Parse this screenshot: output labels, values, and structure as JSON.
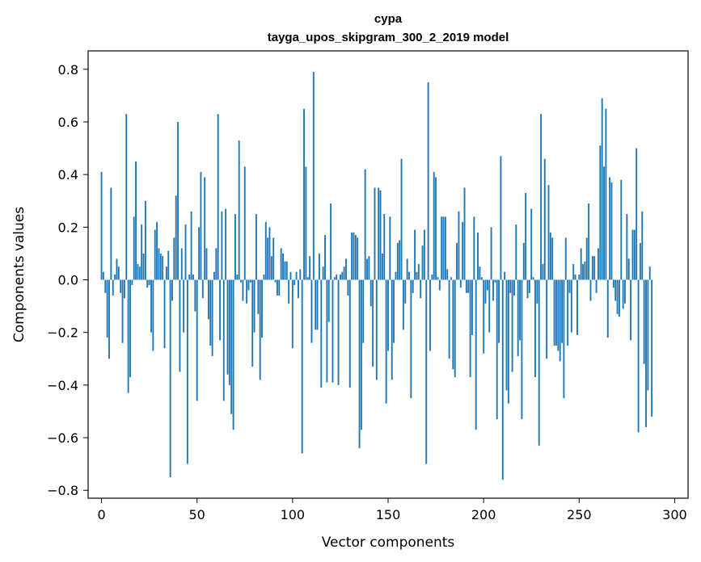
{
  "chart_data": {
    "type": "bar",
    "title": "cypa",
    "subtitle": "tayga_upos_skipgram_300_2_2019 model",
    "xlabel": "Vector components",
    "ylabel": "Components values",
    "xlim": [
      -7,
      307
    ],
    "ylim": [
      -0.83,
      0.87
    ],
    "xticks": [
      0,
      50,
      100,
      150,
      200,
      250,
      300
    ],
    "xtick_labels": [
      "0",
      "50",
      "100",
      "150",
      "200",
      "250",
      "300"
    ],
    "yticks": [
      -0.8,
      -0.6,
      -0.4,
      -0.2,
      0.0,
      0.2,
      0.4,
      0.6,
      0.8
    ],
    "ytick_labels": [
      "−0.8",
      "−0.6",
      "−0.4",
      "−0.2",
      "0.0",
      "0.2",
      "0.4",
      "0.6",
      "0.8"
    ],
    "bar_color": "#1f77b4",
    "x": "0..299",
    "values": [
      0.41,
      0.03,
      -0.05,
      -0.22,
      -0.3,
      0.35,
      -0.06,
      0.02,
      0.08,
      0.05,
      -0.05,
      -0.24,
      -0.07,
      0.63,
      -0.43,
      -0.37,
      -0.02,
      0.24,
      0.45,
      0.06,
      0.05,
      0.21,
      0.1,
      0.3,
      -0.03,
      -0.02,
      -0.2,
      -0.27,
      0.19,
      0.22,
      0.12,
      0.1,
      0.09,
      -0.26,
      0.05,
      0.11,
      -0.75,
      -0.08,
      0.16,
      0.32,
      0.6,
      -0.35,
      0.12,
      -0.2,
      0.21,
      -0.7,
      0.02,
      0.26,
      0.02,
      -0.12,
      -0.46,
      0.2,
      0.41,
      -0.07,
      0.39,
      0.12,
      -0.15,
      -0.25,
      -0.29,
      0.03,
      0.12,
      0.63,
      -0.23,
      0.26,
      -0.46,
      0.27,
      -0.36,
      -0.4,
      -0.51,
      -0.57,
      0.25,
      0.02,
      0.53,
      -0.01,
      -0.08,
      0.43,
      -0.09,
      -0.04,
      -0.01,
      -0.33,
      -0.2,
      0.25,
      -0.13,
      -0.38,
      -0.22,
      0.02,
      0.22,
      0.16,
      0.2,
      0.09,
      0.16,
      -0.01,
      -0.06,
      -0.06,
      0.12,
      0.1,
      0.07,
      0.07,
      -0.09,
      0.03,
      -0.26,
      -0.02,
      0.03,
      -0.07,
      0.04,
      -0.66,
      0.65,
      0.43,
      0.01,
      0.09,
      -0.24,
      0.79,
      -0.19,
      -0.19,
      0.1,
      -0.41,
      0.05,
      0.17,
      -0.39,
      -0.16,
      0.29,
      -0.39,
      0.01,
      0.02,
      -0.4,
      0.02,
      0.03,
      0.05,
      0.08,
      -0.06,
      -0.41,
      0.18,
      0.18,
      0.17,
      0.16,
      -0.64,
      -0.57,
      -0.24,
      0.42,
      0.08,
      0.09,
      -0.1,
      -0.33,
      0.35,
      -0.38,
      0.35,
      0.34,
      0.1,
      0.25,
      -0.47,
      -0.27,
      0.24,
      -0.38,
      -0.24,
      0.03,
      0.14,
      0.15,
      0.46,
      -0.19,
      -0.09,
      0.08,
      0.03,
      -0.45,
      -0.05,
      0.19,
      0.03,
      0.06,
      -0.07,
      0.13,
      0.19,
      -0.7,
      0.75,
      -0.27,
      0.02,
      0.41,
      0.39,
      0.01,
      -0.04,
      0.24,
      0.24,
      0.24,
      0.04,
      -0.3,
      0.01,
      -0.34,
      -0.37,
      0.14,
      0.26,
      -0.03,
      0.22,
      0.35,
      -0.05,
      -0.05,
      -0.37,
      -0.21,
      0.24,
      -0.57,
      0.18,
      0.05,
      0.01,
      -0.28,
      -0.09,
      -0.04,
      -0.2,
      0.2,
      -0.08,
      -0.01,
      -0.53,
      -0.24,
      0.47,
      -0.76,
      0.03,
      -0.42,
      -0.47,
      -0.05,
      -0.35,
      -0.06,
      0.21,
      -0.29,
      -0.23,
      -0.53,
      0.14,
      0.33,
      -0.07,
      -0.05,
      0.27,
      0.01,
      -0.37,
      -0.09,
      -0.63,
      0.63,
      0.06,
      0.46,
      -0.3,
      0.36,
      0.18,
      0.16,
      -0.25,
      -0.25,
      -0.27,
      -0.31,
      -0.24,
      -0.45,
      0.16,
      -0.25,
      -0.05,
      -0.2,
      0.06,
      0.02,
      -0.21,
      0.02,
      0.12,
      0.06,
      0.07,
      0.16,
      0.29,
      -0.08,
      0.09,
      0.09,
      -0.05,
      0.12,
      0.51,
      0.69,
      0.43,
      0.65,
      -0.22,
      0.39,
      0.37,
      -0.03,
      -0.08,
      -0.13,
      -0.14,
      0.38,
      -0.11,
      -0.09,
      0.25,
      0.08,
      -0.23,
      0.19,
      0.19,
      0.5,
      -0.58,
      0.14,
      0.26,
      -0.32,
      -0.56,
      -0.42,
      0.05,
      -0.52
    ]
  }
}
